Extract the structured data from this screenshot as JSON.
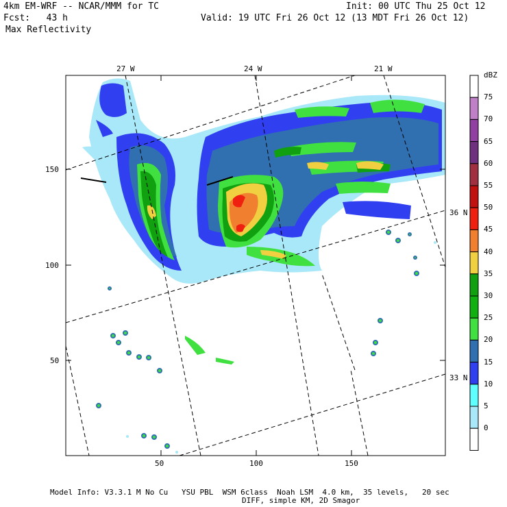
{
  "header": {
    "line1_left": "4km EM-WRF -- NCAR/MMM for TC",
    "line1_right": "Init: 00 UTC Thu 25 Oct 12",
    "line2_left": "Fcst:   43 h",
    "line2_right": "Valid: 19 UTC Fri 26 Oct 12 (13 MDT Fri 26 Oct 12)",
    "field": "Max Reflectivity"
  },
  "map": {
    "x_ticks": [
      "50",
      "100",
      "150"
    ],
    "y_ticks": [
      "50",
      "100",
      "150"
    ],
    "lon_labels": [
      "27 W",
      "24 W",
      "21 W"
    ],
    "lat_labels": [
      "36 N",
      "33 N"
    ]
  },
  "colorbar": {
    "unit": "dBZ",
    "levels": [
      {
        "label": "75",
        "color": "#c080c8"
      },
      {
        "label": "70",
        "color": "#9040a0"
      },
      {
        "label": "65",
        "color": "#703080"
      },
      {
        "label": "60",
        "color": "#a03040"
      },
      {
        "label": "55",
        "color": "#c01010"
      },
      {
        "label": "50",
        "color": "#f02010"
      },
      {
        "label": "45",
        "color": "#f08030"
      },
      {
        "label": "40",
        "color": "#f0d040"
      },
      {
        "label": "35",
        "color": "#10a010"
      },
      {
        "label": "30",
        "color": "#10b010"
      },
      {
        "label": "25",
        "color": "#40e040"
      },
      {
        "label": "20",
        "color": "#3070b0"
      },
      {
        "label": "15",
        "color": "#3040f0"
      },
      {
        "label": "10",
        "color": "#60ffff"
      },
      {
        "label": "5",
        "color": "#a8e8f8"
      },
      {
        "label": "0",
        "color": "#ffffff"
      }
    ]
  },
  "footer": {
    "line1": "Model Info: V3.3.1 M No Cu   YSU PBL  WSM 6class  Noah LSM  4.0 km,  35 levels,   20 sec",
    "line2": "DIFF, simple KM, 2D Smagor"
  }
}
